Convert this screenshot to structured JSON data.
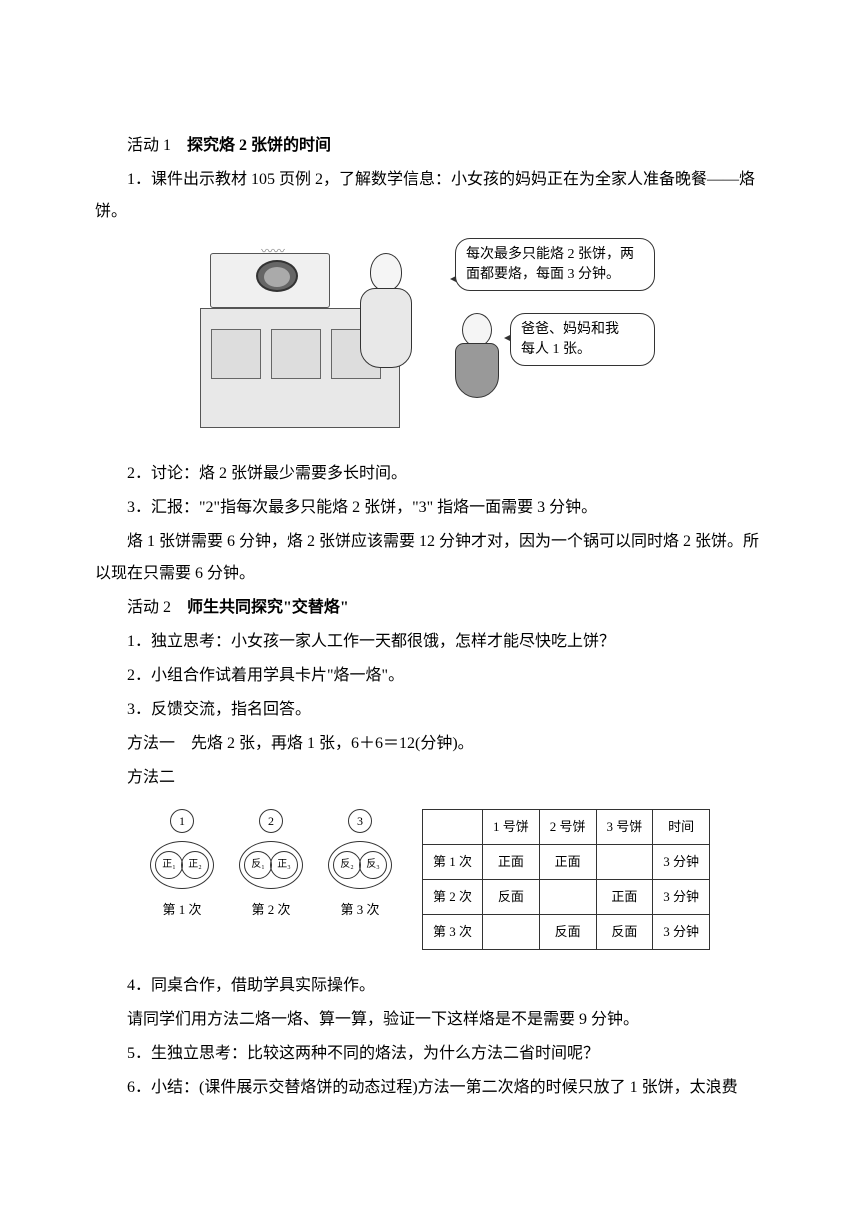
{
  "activity1": {
    "label": "活动 1",
    "title": "探究烙 2 张饼的时间"
  },
  "p1": "1．课件出示教材 105 页例 2，了解数学信息：小女孩的妈妈正在为全家人准备晚餐——烙饼。",
  "illustration": {
    "bubble1_line1": "每次最多只能烙 2 张饼，两",
    "bubble1_line2": "面都要烙，每面 3 分钟。",
    "bubble2_line1": "爸爸、妈妈和我",
    "bubble2_line2": "每人 1 张。"
  },
  "p2": "2．讨论：烙 2 张饼最少需要多长时间。",
  "p3": "3．汇报：\"2\"指每次最多只能烙 2 张饼，\"3\" 指烙一面需要 3 分钟。",
  "p4": "烙 1 张饼需要 6 分钟，烙 2 张饼应该需要 12 分钟才对，因为一个锅可以同时烙 2 张饼。所以现在只需要 6 分钟。",
  "activity2": {
    "label": "活动 2",
    "title": "师生共同探究\"交替烙\""
  },
  "p5": "1．独立思考：小女孩一家人工作一天都很饿，怎样才能尽快吃上饼？",
  "p6": "2．小组合作试着用学具卡片\"烙一烙\"。",
  "p7": "3．反馈交流，指名回答。",
  "p8": "方法一　先烙 2 张，再烙 1 张，6＋6＝12(分钟)。",
  "p9": "方法二",
  "circles": {
    "top": [
      "1",
      "2",
      "3"
    ],
    "groups": [
      {
        "left": "正₁",
        "right": "正₂",
        "label": "第 1 次"
      },
      {
        "left": "反₁",
        "right": "正₃",
        "label": "第 2 次"
      },
      {
        "left": "反₂",
        "right": "反₃",
        "label": "第 3 次"
      }
    ]
  },
  "table": {
    "headers": [
      "",
      "1 号饼",
      "2 号饼",
      "3 号饼",
      "时间"
    ],
    "rows": [
      [
        "第 1 次",
        "正面",
        "正面",
        "",
        "3 分钟"
      ],
      [
        "第 2 次",
        "反面",
        "",
        "正面",
        "3 分钟"
      ],
      [
        "第 3 次",
        "",
        "反面",
        "反面",
        "3 分钟"
      ]
    ]
  },
  "p10": "4．同桌合作，借助学具实际操作。",
  "p11": "请同学们用方法二烙一烙、算一算，验证一下这样烙是不是需要 9 分钟。",
  "p12": "5．生独立思考：比较这两种不同的烙法，为什么方法二省时间呢？",
  "p13": "6．小结：(课件展示交替烙饼的动态过程)方法一第二次烙的时候只放了 1 张饼，太浪费"
}
